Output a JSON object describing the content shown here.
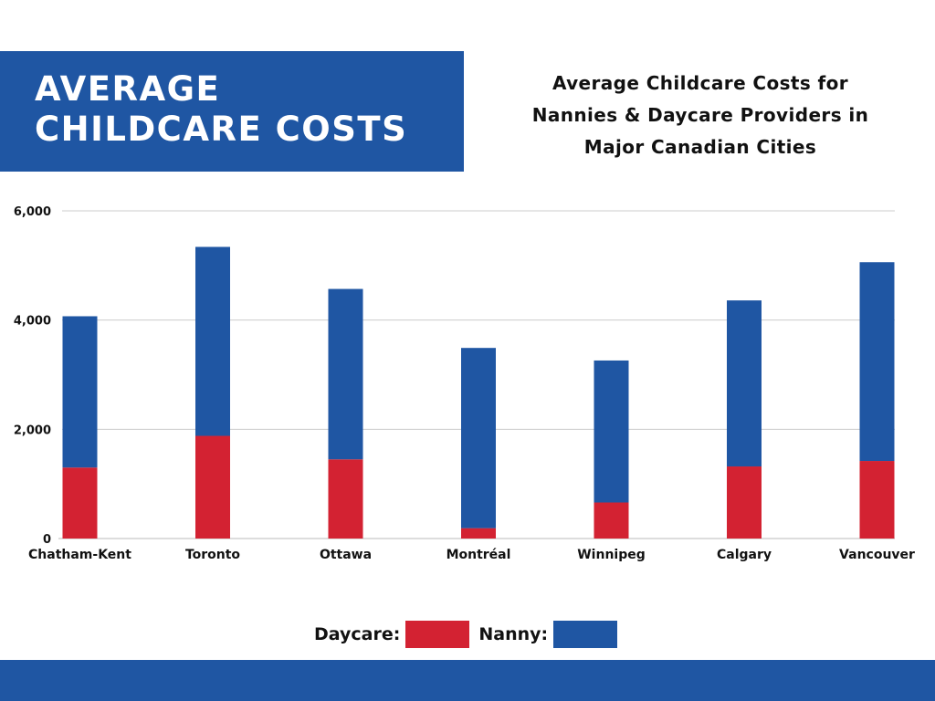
{
  "banner": {
    "title_line1": "AVERAGE",
    "title_line2": "CHILDCARE COSTS"
  },
  "subtitle": {
    "line1": "Average Childcare Costs for",
    "line2": "Nannies & Daycare Providers in",
    "line3": "Major Canadian Cities"
  },
  "legend": {
    "daycare_label": "Daycare:",
    "nanny_label": "Nanny:"
  },
  "colors": {
    "brand_blue": "#1f56a3",
    "daycare": "#d32232",
    "nanny": "#1f56a3",
    "grid": "#cccccc"
  },
  "chart_data": {
    "type": "bar",
    "stacked": true,
    "title": "",
    "xlabel": "",
    "ylabel": "",
    "ylim": [
      0,
      6000
    ],
    "yticks": [
      0,
      2000,
      4000,
      6000
    ],
    "ytick_labels": [
      "0",
      "2,000",
      "4,000",
      "6,000"
    ],
    "grid": true,
    "legend_position": "bottom",
    "categories": [
      "Chatham-Kent",
      "Toronto",
      "Ottawa",
      "Montréal",
      "Winnipeg",
      "Calgary",
      "Vancouver"
    ],
    "series": [
      {
        "name": "Daycare",
        "color": "#d32232",
        "values": [
          1300,
          1880,
          1450,
          190,
          660,
          1320,
          1420
        ]
      },
      {
        "name": "Nanny",
        "color": "#1f56a3",
        "values": [
          2770,
          3460,
          3120,
          3300,
          2600,
          3040,
          3640
        ]
      }
    ]
  }
}
